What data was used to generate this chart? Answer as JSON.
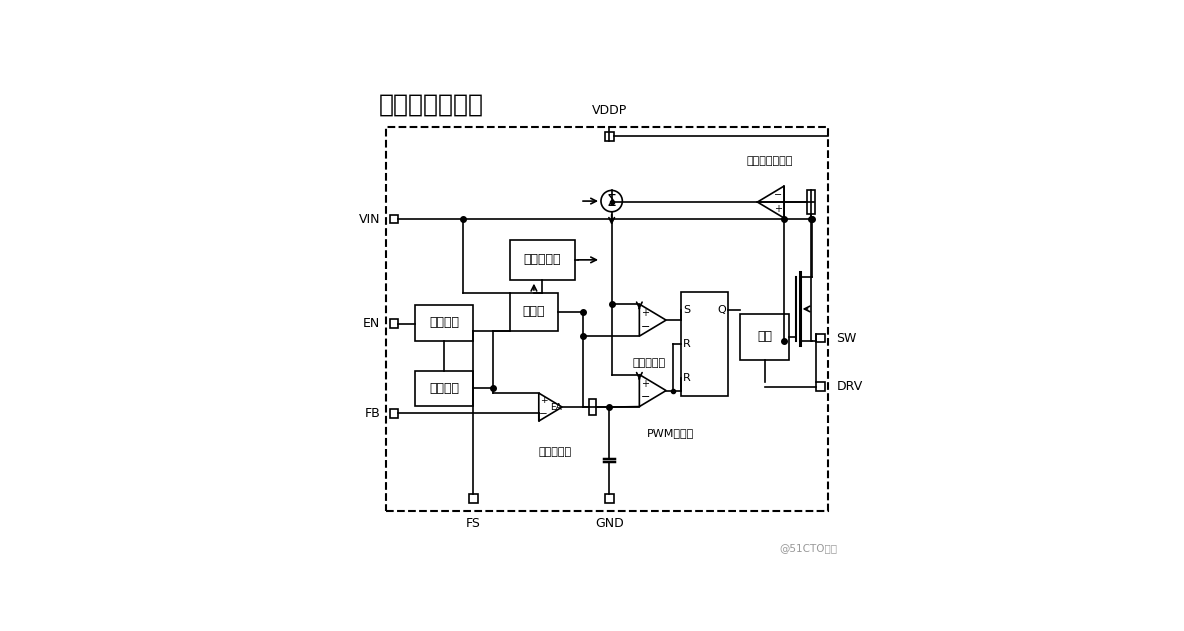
{
  "title": "内部电路方框图",
  "title_fontsize": 18,
  "bg_color": "#ffffff",
  "watermark": "@51CTO博客",
  "pin_labels": [
    "VIN",
    "EN",
    "FB",
    "VDDP",
    "FS",
    "GND",
    "SW",
    "DRV"
  ],
  "block_labels": [
    "电压调节",
    "参考电压",
    "斜波发生器",
    "振荡器",
    "驱动"
  ],
  "comp_labels": [
    "限流比较器",
    "PWM比较器",
    "误差放大器",
    "电流采样放大器"
  ],
  "sr_labels": [
    "S",
    "Q",
    "R",
    "R"
  ],
  "ea_label": "EA"
}
